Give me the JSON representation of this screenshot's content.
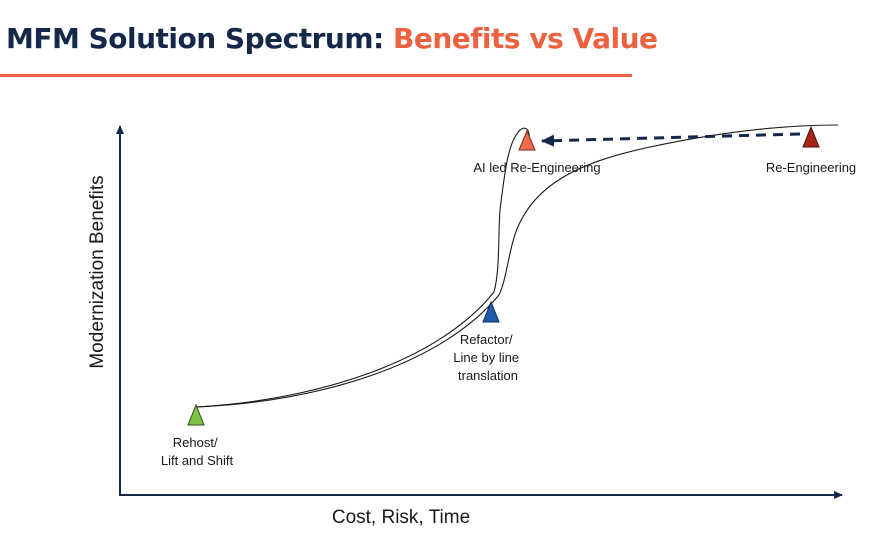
{
  "title": {
    "main": "MFM Solution Spectrum:",
    "accent": "Benefits vs Value"
  },
  "axes": {
    "y_label": "Modernization Benefits",
    "x_label": "Cost, Risk, Time"
  },
  "points": [
    {
      "id": "rehost",
      "lines": [
        "Rehost/",
        "Lift and Shift"
      ],
      "color": "#7dc242"
    },
    {
      "id": "refactor",
      "lines": [
        "Refactor/",
        "Line by line",
        "translation"
      ],
      "color": "#1f5ba8"
    },
    {
      "id": "ai",
      "lines": [
        "AI led Re-Engineering"
      ],
      "color": "#f26a4b"
    },
    {
      "id": "reeng",
      "lines": [
        "Re-Engineering"
      ],
      "color": "#a8241a"
    }
  ],
  "colors": {
    "title": "#16284a",
    "accent": "#ec6140",
    "arrow": "#16284a"
  }
}
